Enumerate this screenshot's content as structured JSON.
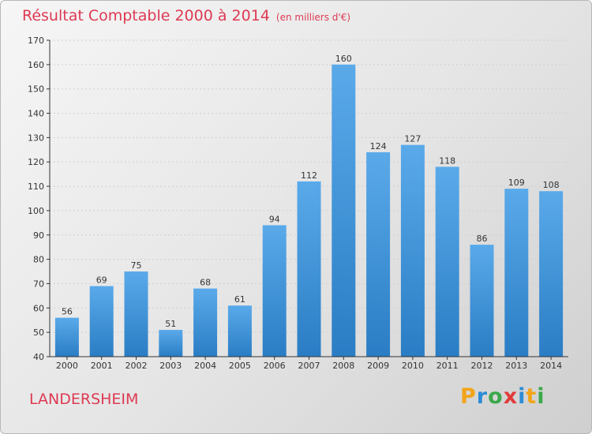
{
  "title": "Résultat Comptable 2000 à 2014",
  "subtitle": "(en milliers d'€)",
  "commune": "LANDERSHEIM",
  "logo": {
    "letters": [
      "P",
      "r",
      "o",
      "x",
      "i",
      "t",
      "i"
    ],
    "colors": [
      "#f2a41a",
      "#2c8cd6",
      "#3aa84a",
      "#e23a3a",
      "#2c8cd6",
      "#f2a41a",
      "#3aa84a"
    ]
  },
  "colors": {
    "bar_top": "#5aaaea",
    "bar_bottom": "#2a7dc4",
    "accent": "#dd3a53",
    "axis": "#333333"
  },
  "chart_data": {
    "type": "bar",
    "categories": [
      "2000",
      "2001",
      "2002",
      "2003",
      "2004",
      "2005",
      "2006",
      "2007",
      "2008",
      "2009",
      "2010",
      "2011",
      "2012",
      "2013",
      "2014"
    ],
    "values": [
      56,
      69,
      75,
      51,
      68,
      61,
      94,
      112,
      160,
      124,
      127,
      118,
      86,
      109,
      108
    ],
    "ylim": [
      40,
      170
    ],
    "yticks": [
      40,
      50,
      60,
      70,
      80,
      90,
      100,
      110,
      120,
      130,
      140,
      150,
      160,
      170
    ],
    "grid": true,
    "data_labels": true
  }
}
